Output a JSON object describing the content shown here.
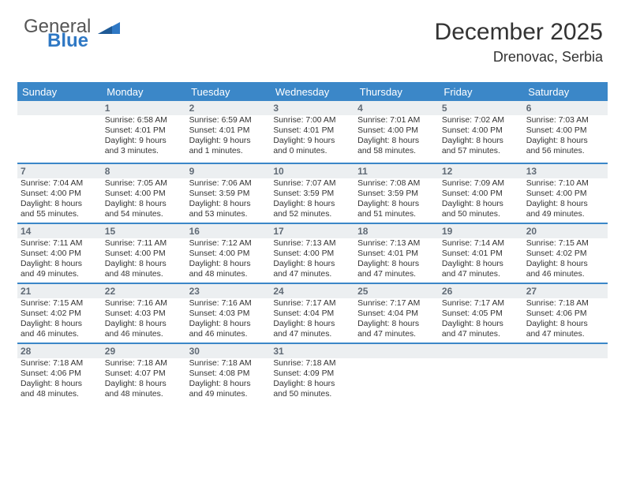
{
  "logo": {
    "line1": "General",
    "line2": "Blue"
  },
  "header": {
    "title": "December 2025",
    "location": "Drenovac, Serbia"
  },
  "colors": {
    "headerBlue": "#3b87c8",
    "dayBg": "#eceff1",
    "text": "#333333"
  },
  "weekdays": [
    "Sunday",
    "Monday",
    "Tuesday",
    "Wednesday",
    "Thursday",
    "Friday",
    "Saturday"
  ],
  "weeks": [
    [
      null,
      {
        "n": "1",
        "sr": "Sunrise: 6:58 AM",
        "ss": "Sunset: 4:01 PM",
        "d1": "Daylight: 9 hours",
        "d2": "and 3 minutes."
      },
      {
        "n": "2",
        "sr": "Sunrise: 6:59 AM",
        "ss": "Sunset: 4:01 PM",
        "d1": "Daylight: 9 hours",
        "d2": "and 1 minutes."
      },
      {
        "n": "3",
        "sr": "Sunrise: 7:00 AM",
        "ss": "Sunset: 4:01 PM",
        "d1": "Daylight: 9 hours",
        "d2": "and 0 minutes."
      },
      {
        "n": "4",
        "sr": "Sunrise: 7:01 AM",
        "ss": "Sunset: 4:00 PM",
        "d1": "Daylight: 8 hours",
        "d2": "and 58 minutes."
      },
      {
        "n": "5",
        "sr": "Sunrise: 7:02 AM",
        "ss": "Sunset: 4:00 PM",
        "d1": "Daylight: 8 hours",
        "d2": "and 57 minutes."
      },
      {
        "n": "6",
        "sr": "Sunrise: 7:03 AM",
        "ss": "Sunset: 4:00 PM",
        "d1": "Daylight: 8 hours",
        "d2": "and 56 minutes."
      }
    ],
    [
      {
        "n": "7",
        "sr": "Sunrise: 7:04 AM",
        "ss": "Sunset: 4:00 PM",
        "d1": "Daylight: 8 hours",
        "d2": "and 55 minutes."
      },
      {
        "n": "8",
        "sr": "Sunrise: 7:05 AM",
        "ss": "Sunset: 4:00 PM",
        "d1": "Daylight: 8 hours",
        "d2": "and 54 minutes."
      },
      {
        "n": "9",
        "sr": "Sunrise: 7:06 AM",
        "ss": "Sunset: 3:59 PM",
        "d1": "Daylight: 8 hours",
        "d2": "and 53 minutes."
      },
      {
        "n": "10",
        "sr": "Sunrise: 7:07 AM",
        "ss": "Sunset: 3:59 PM",
        "d1": "Daylight: 8 hours",
        "d2": "and 52 minutes."
      },
      {
        "n": "11",
        "sr": "Sunrise: 7:08 AM",
        "ss": "Sunset: 3:59 PM",
        "d1": "Daylight: 8 hours",
        "d2": "and 51 minutes."
      },
      {
        "n": "12",
        "sr": "Sunrise: 7:09 AM",
        "ss": "Sunset: 4:00 PM",
        "d1": "Daylight: 8 hours",
        "d2": "and 50 minutes."
      },
      {
        "n": "13",
        "sr": "Sunrise: 7:10 AM",
        "ss": "Sunset: 4:00 PM",
        "d1": "Daylight: 8 hours",
        "d2": "and 49 minutes."
      }
    ],
    [
      {
        "n": "14",
        "sr": "Sunrise: 7:11 AM",
        "ss": "Sunset: 4:00 PM",
        "d1": "Daylight: 8 hours",
        "d2": "and 49 minutes."
      },
      {
        "n": "15",
        "sr": "Sunrise: 7:11 AM",
        "ss": "Sunset: 4:00 PM",
        "d1": "Daylight: 8 hours",
        "d2": "and 48 minutes."
      },
      {
        "n": "16",
        "sr": "Sunrise: 7:12 AM",
        "ss": "Sunset: 4:00 PM",
        "d1": "Daylight: 8 hours",
        "d2": "and 48 minutes."
      },
      {
        "n": "17",
        "sr": "Sunrise: 7:13 AM",
        "ss": "Sunset: 4:00 PM",
        "d1": "Daylight: 8 hours",
        "d2": "and 47 minutes."
      },
      {
        "n": "18",
        "sr": "Sunrise: 7:13 AM",
        "ss": "Sunset: 4:01 PM",
        "d1": "Daylight: 8 hours",
        "d2": "and 47 minutes."
      },
      {
        "n": "19",
        "sr": "Sunrise: 7:14 AM",
        "ss": "Sunset: 4:01 PM",
        "d1": "Daylight: 8 hours",
        "d2": "and 47 minutes."
      },
      {
        "n": "20",
        "sr": "Sunrise: 7:15 AM",
        "ss": "Sunset: 4:02 PM",
        "d1": "Daylight: 8 hours",
        "d2": "and 46 minutes."
      }
    ],
    [
      {
        "n": "21",
        "sr": "Sunrise: 7:15 AM",
        "ss": "Sunset: 4:02 PM",
        "d1": "Daylight: 8 hours",
        "d2": "and 46 minutes."
      },
      {
        "n": "22",
        "sr": "Sunrise: 7:16 AM",
        "ss": "Sunset: 4:03 PM",
        "d1": "Daylight: 8 hours",
        "d2": "and 46 minutes."
      },
      {
        "n": "23",
        "sr": "Sunrise: 7:16 AM",
        "ss": "Sunset: 4:03 PM",
        "d1": "Daylight: 8 hours",
        "d2": "and 46 minutes."
      },
      {
        "n": "24",
        "sr": "Sunrise: 7:17 AM",
        "ss": "Sunset: 4:04 PM",
        "d1": "Daylight: 8 hours",
        "d2": "and 47 minutes."
      },
      {
        "n": "25",
        "sr": "Sunrise: 7:17 AM",
        "ss": "Sunset: 4:04 PM",
        "d1": "Daylight: 8 hours",
        "d2": "and 47 minutes."
      },
      {
        "n": "26",
        "sr": "Sunrise: 7:17 AM",
        "ss": "Sunset: 4:05 PM",
        "d1": "Daylight: 8 hours",
        "d2": "and 47 minutes."
      },
      {
        "n": "27",
        "sr": "Sunrise: 7:18 AM",
        "ss": "Sunset: 4:06 PM",
        "d1": "Daylight: 8 hours",
        "d2": "and 47 minutes."
      }
    ],
    [
      {
        "n": "28",
        "sr": "Sunrise: 7:18 AM",
        "ss": "Sunset: 4:06 PM",
        "d1": "Daylight: 8 hours",
        "d2": "and 48 minutes."
      },
      {
        "n": "29",
        "sr": "Sunrise: 7:18 AM",
        "ss": "Sunset: 4:07 PM",
        "d1": "Daylight: 8 hours",
        "d2": "and 48 minutes."
      },
      {
        "n": "30",
        "sr": "Sunrise: 7:18 AM",
        "ss": "Sunset: 4:08 PM",
        "d1": "Daylight: 8 hours",
        "d2": "and 49 minutes."
      },
      {
        "n": "31",
        "sr": "Sunrise: 7:18 AM",
        "ss": "Sunset: 4:09 PM",
        "d1": "Daylight: 8 hours",
        "d2": "and 50 minutes."
      },
      null,
      null,
      null
    ]
  ]
}
